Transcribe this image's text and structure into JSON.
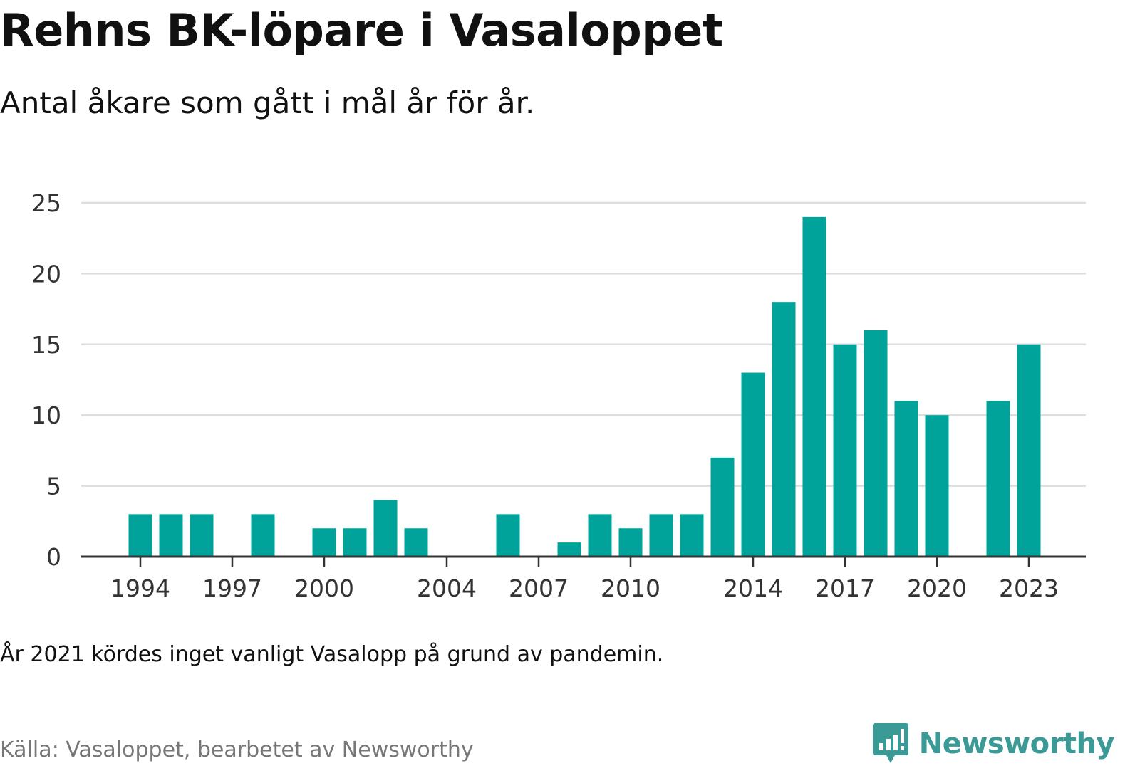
{
  "title": "Rehns BK-löpare i Vasaloppet",
  "subtitle": "Antal åkare som gått i mål år för år.",
  "note": "År 2021 kördes inget vanligt Vasalopp på grund av pandemin.",
  "source": "Källa: Vasaloppet, bearbetet av Newsworthy",
  "logo": {
    "text": "Newsworthy",
    "icon": "newsworthy-chart-icon"
  },
  "colors": {
    "bar": "#00a39a",
    "grid": "#dddddd",
    "axis": "#333333",
    "logo": "#3a9a96"
  },
  "chart_data": {
    "type": "bar",
    "x": [
      1994,
      1995,
      1996,
      1997,
      1998,
      1999,
      2000,
      2001,
      2002,
      2003,
      2004,
      2005,
      2006,
      2007,
      2008,
      2009,
      2010,
      2011,
      2012,
      2013,
      2014,
      2015,
      2016,
      2017,
      2018,
      2019,
      2020,
      2021,
      2022,
      2023
    ],
    "values": [
      3,
      3,
      3,
      0,
      3,
      0,
      2,
      2,
      4,
      2,
      0,
      0,
      3,
      0,
      1,
      3,
      2,
      3,
      3,
      7,
      13,
      18,
      24,
      15,
      16,
      11,
      10,
      0,
      11,
      15
    ],
    "x_ticks": [
      "1994",
      "1997",
      "2000",
      "2004",
      "2007",
      "2010",
      "2014",
      "2017",
      "2020",
      "2023"
    ],
    "y_ticks": [
      "0",
      "5",
      "10",
      "15",
      "20",
      "25"
    ],
    "ylim": [
      0,
      25
    ],
    "grid": true,
    "legend": "none"
  }
}
